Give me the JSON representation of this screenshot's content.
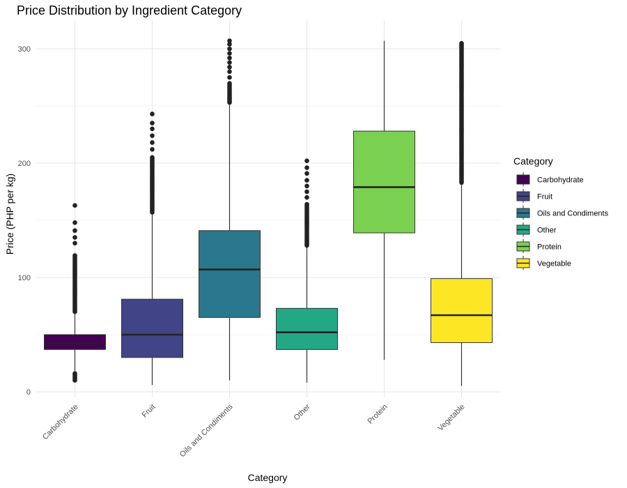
{
  "chart_data": {
    "type": "boxplot",
    "title": "Price Distribution by Ingredient Category",
    "xlabel": "Category",
    "ylabel": "Price (PHP per kg)",
    "ylim": [
      -2,
      322
    ],
    "yticks": [
      0,
      100,
      200,
      300
    ],
    "grid": true,
    "legend": {
      "title": "Category",
      "placement": "right",
      "entries": [
        "Carbohydrate",
        "Fruit",
        "Oils and Condiments",
        "Other",
        "Protein",
        "Vegetable"
      ]
    },
    "categories": [
      "Carbohydrate",
      "Fruit",
      "Oils and Condiments",
      "Other",
      "Protein",
      "Vegetable"
    ],
    "colors": [
      "#440154",
      "#414487",
      "#2a788e",
      "#22a884",
      "#7ad151",
      "#fde725"
    ],
    "boxes": [
      {
        "category": "Carbohydrate",
        "whisker_low": 18,
        "q1": 37,
        "median": 42,
        "q3": 50,
        "whisker_high": 69,
        "outliers_high": {
          "min": 70,
          "dense_max": 120,
          "max": 163,
          "sparse": [
            130,
            135,
            141,
            148,
            163
          ]
        },
        "outliers_low": {
          "min": 10,
          "max": 17
        }
      },
      {
        "category": "Fruit",
        "whisker_low": 6,
        "q1": 30,
        "median": 50,
        "q3": 81,
        "whisker_high": 156,
        "outliers_high": {
          "min": 157,
          "dense_max": 205,
          "max": 243,
          "sparse": [
            212,
            218,
            224,
            230,
            235,
            243
          ]
        }
      },
      {
        "category": "Oils and Condiments",
        "whisker_low": 10,
        "q1": 65,
        "median": 107,
        "q3": 141,
        "whisker_high": 252,
        "outliers_high": {
          "min": 253,
          "dense_max": 270,
          "max": 307,
          "sparse": [
            275,
            280,
            284,
            288,
            292,
            296,
            300,
            304,
            307
          ]
        }
      },
      {
        "category": "Other",
        "whisker_low": 8,
        "q1": 37,
        "median": 52,
        "q3": 73,
        "whisker_high": 127,
        "outliers_high": {
          "min": 128,
          "dense_max": 165,
          "max": 202,
          "sparse": [
            170,
            175,
            180,
            185,
            191,
            196,
            202
          ]
        }
      },
      {
        "category": "Protein",
        "whisker_low": 28,
        "q1": 139,
        "median": 179,
        "q3": 228,
        "whisker_high": 307
      },
      {
        "category": "Vegetable",
        "whisker_low": 5,
        "q1": 43,
        "median": 67,
        "q3": 99,
        "whisker_high": 182,
        "outliers_high": {
          "min": 183,
          "dense_max": 300,
          "max": 305,
          "sparse": []
        }
      }
    ]
  }
}
